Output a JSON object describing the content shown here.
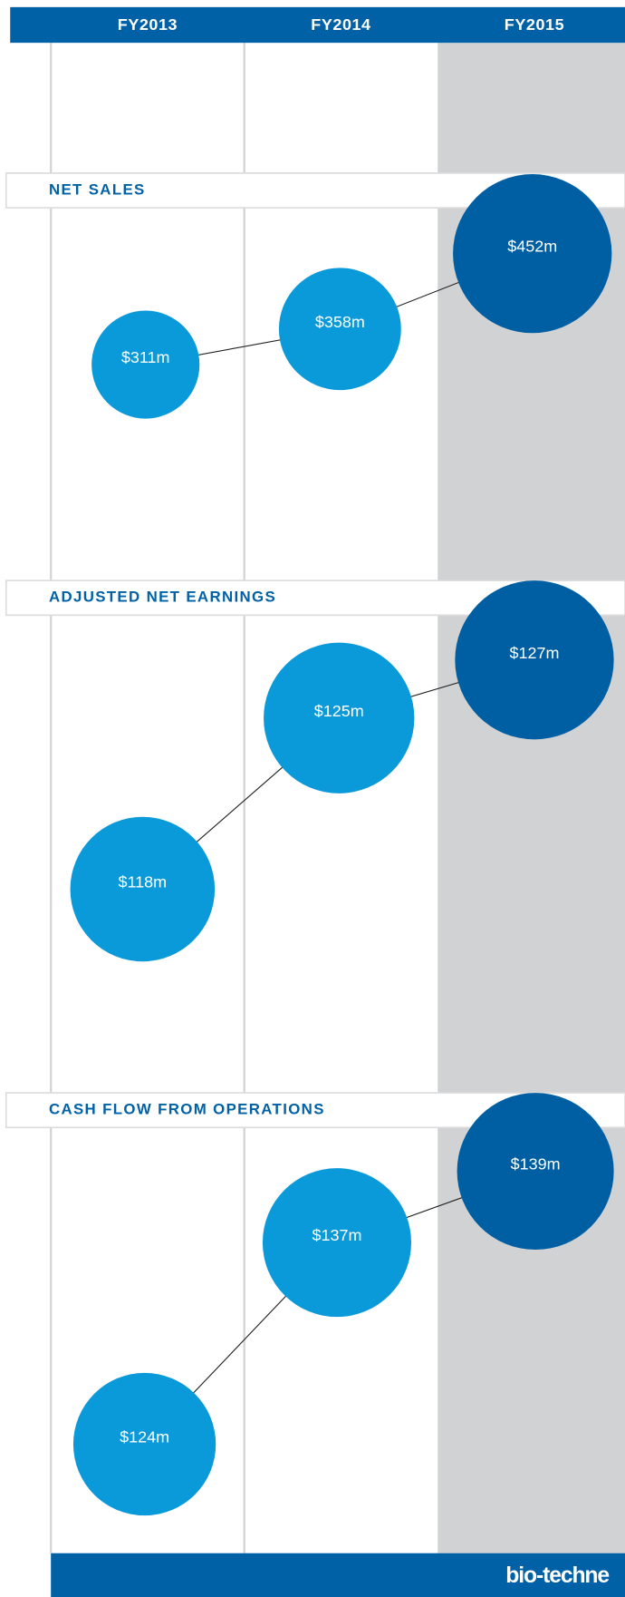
{
  "header": {
    "columns": [
      "FY2013",
      "FY2014",
      "FY2015"
    ]
  },
  "chart_data": [
    {
      "type": "bubble",
      "title": "NET SALES",
      "values": [
        311,
        358,
        452
      ],
      "value_labels": [
        "$311m",
        "$358m",
        "$452m"
      ],
      "colors": [
        "#0b9ad9",
        "#0b9ad9",
        "#005fa3"
      ]
    },
    {
      "type": "bubble",
      "title": "ADJUSTED NET EARNINGS",
      "values": [
        118,
        125,
        127
      ],
      "value_labels": [
        "$118m",
        "$125m",
        "$127m"
      ],
      "colors": [
        "#0b9ad9",
        "#0b9ad9",
        "#005fa3"
      ]
    },
    {
      "type": "bubble",
      "title": "CASH FLOW FROM OPERATIONS",
      "values": [
        124,
        137,
        139
      ],
      "value_labels": [
        "$124m",
        "$137m",
        "$139m"
      ],
      "colors": [
        "#0b9ad9",
        "#0b9ad9",
        "#005fa3"
      ]
    }
  ],
  "footer": {
    "brand": "bio-techne"
  }
}
